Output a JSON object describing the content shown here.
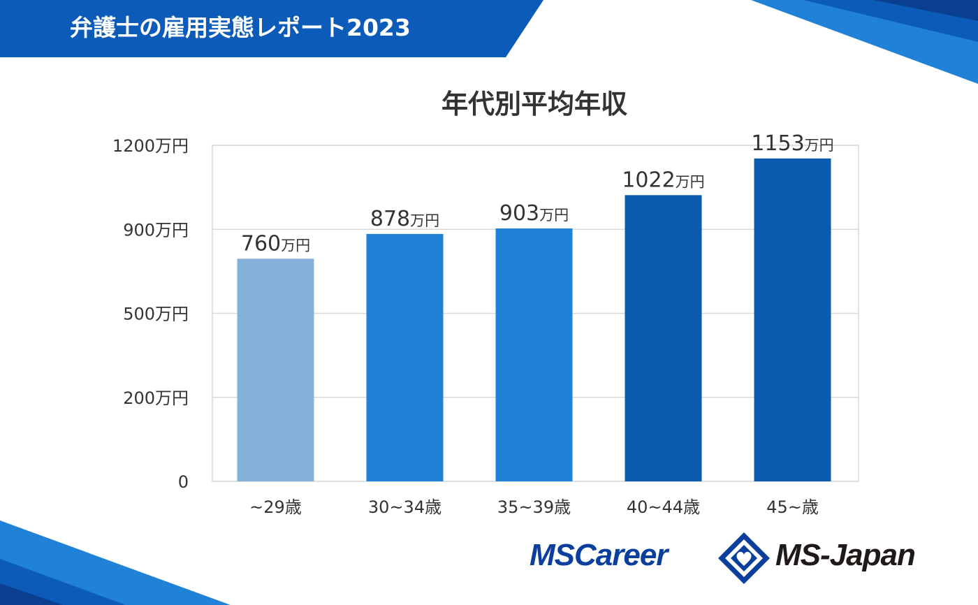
{
  "header": {
    "title": "弁護士の雇用実態レポート2023"
  },
  "colors": {
    "header_blue": "#0d5bb8",
    "light_bar": "#85b0d9",
    "mid_bar": "#1f82d6",
    "dark_bar": "#0a5bb0",
    "grid": "#d9d9d9",
    "text": "#333333"
  },
  "chart_data": {
    "type": "bar",
    "title": "年代別平均年収",
    "xlabel": "",
    "ylabel": "",
    "categories": [
      "~29歳",
      "30~34歳",
      "35~39歳",
      "40~44歳",
      "45~歳"
    ],
    "values": [
      760,
      878,
      903,
      1022,
      1153
    ],
    "value_labels": [
      {
        "num": "760",
        "unit": "万円"
      },
      {
        "num": "878",
        "unit": "万円"
      },
      {
        "num": "903",
        "unit": "万円"
      },
      {
        "num": "1022",
        "unit": "万円"
      },
      {
        "num": "1153",
        "unit": "万円"
      }
    ],
    "bar_colors": [
      "#85b0d9",
      "#1f82d6",
      "#1f82d6",
      "#0a5bb0",
      "#0a5bb0"
    ],
    "y_ticks": [
      {
        "value": 0,
        "label": "0"
      },
      {
        "value": 200,
        "label": "200万円"
      },
      {
        "value": 500,
        "label": "500万円"
      },
      {
        "value": 900,
        "label": "900万円"
      },
      {
        "value": 1200,
        "label": "1200万円"
      }
    ],
    "ylim": [
      0,
      1200
    ],
    "grid": true,
    "legend": "none"
  },
  "logos": {
    "ms_career": "MSCareer",
    "ms_japan": "MS-Japan"
  }
}
